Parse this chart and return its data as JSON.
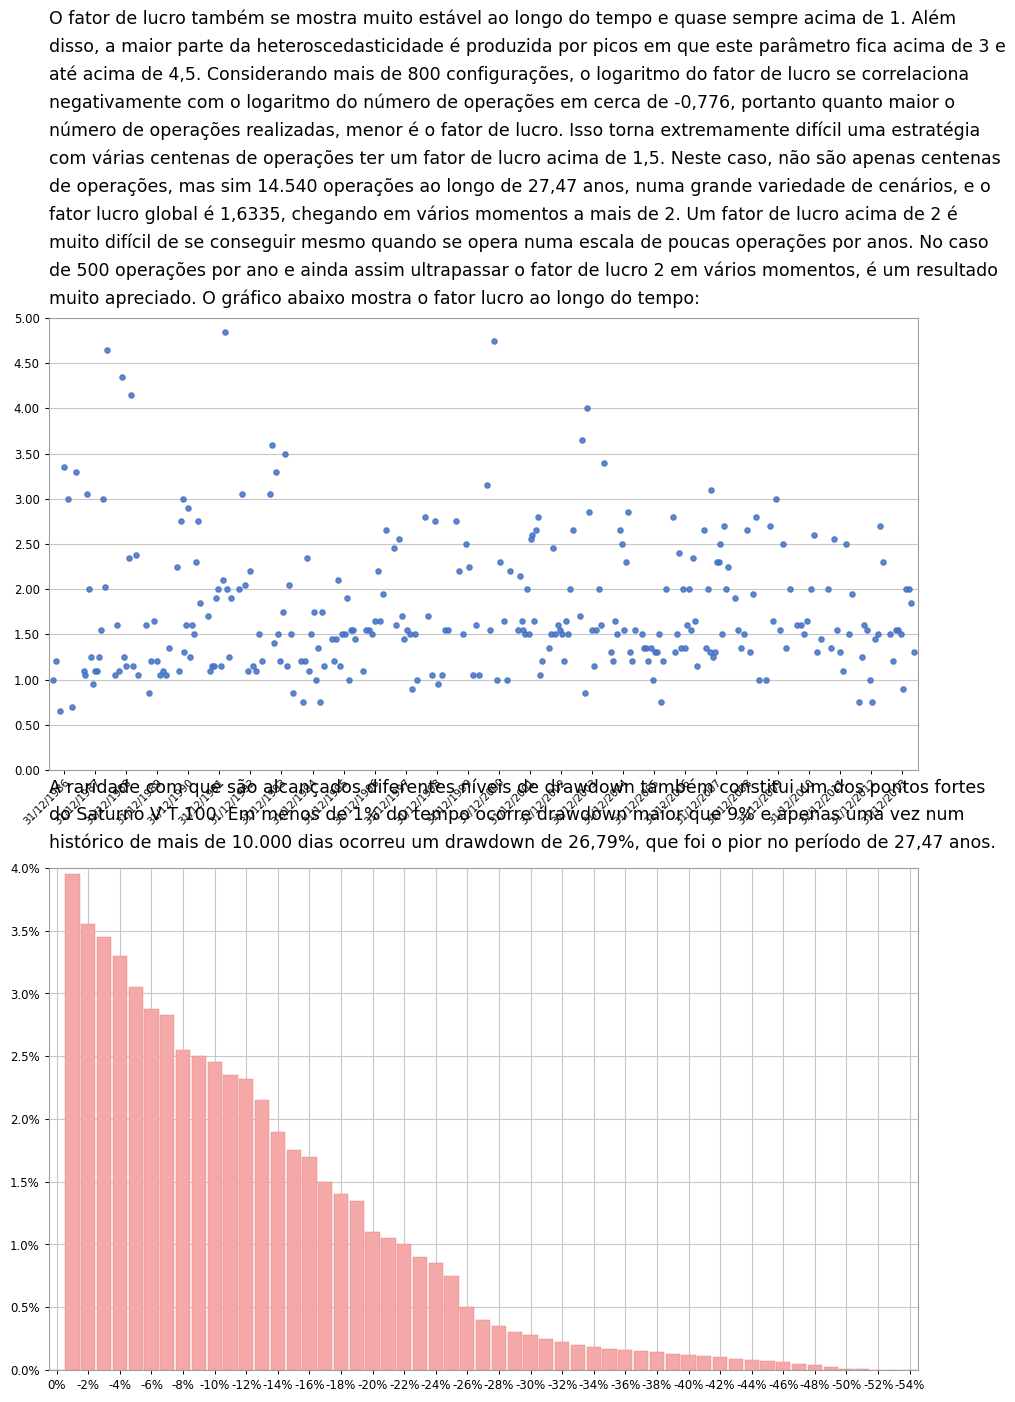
{
  "paragraph_text": "O fator de lucro também se mostra muito estável ao longo do tempo e quase sempre acima de 1. Além\ndisso, a maior parte da heteroscedasticidade é produzida por picos em que este parâmetro fica acima de 3 e\naté acima de 4,5. Considerando mais de 800 configurações, o logaritmo do fator de lucro se correlaciona\nnegativamente com o logaritmo do número de operações em cerca de -0,776, portanto quanto maior o\nnúmero de operações realizadas, menor é o fator de lucro. Isso torna extremamente difícil uma estratégia\ncom várias centenas de operações ter um fator de lucro acima de 1,5. Neste caso, não são apenas centenas\nde operações, mas sim 14.540 operações ao longo de 27,47 anos, numa grande variedade de cenários, e o\nfator lucro global é 1,6335, chegando em vários momentos a mais de 2. Um fator de lucro acima de 2 é\nmuito difícil de se conseguir mesmo quando se opera numa escala de poucas operações por anos. No caso\nde 500 operações por ano e ainda assim ultrapassar o fator de lucro 2 em vários momentos, é um resultado\nmuito apreciado. O gráfico abaixo mostra o fator lucro ao longo do tempo:",
  "paragraph2_text": "A raridade com que são alcançados diferentes níveis de drawdown também constitui um dos pontos fortes\ndo Saturno V T 100. Em menos de 1% do tempo ocorre drawdown maior que 9% e apenas uma vez num\nhistórico de mais de 10.000 dias ocorreu um drawdown de 26,79%, que foi o pior no período de 27,47 anos.",
  "scatter_ylim": [
    0.0,
    5.0
  ],
  "scatter_yticks": [
    0.0,
    0.5,
    1.0,
    1.5,
    2.0,
    2.5,
    3.0,
    3.5,
    4.0,
    4.5,
    5.0
  ],
  "scatter_xlabel_dates": [
    "31/12/1986",
    "31/12/1987",
    "31/12/1988",
    "31/12/1989",
    "31/12/1990",
    "31/12/1991",
    "31/12/1992",
    "31/12/1993",
    "31/12/1994",
    "31/12/1995",
    "31/12/1996",
    "31/12/1997",
    "31/12/1998",
    "31/12/1999",
    "31/12/2000",
    "31/12/2001",
    "31/12/2002",
    "31/12/2003",
    "31/12/2004",
    "31/12/2005",
    "31/12/2006",
    "31/12/2007",
    "31/12/2008",
    "31/12/2009",
    "31/12/2010",
    "31/12/2011",
    "31/12/2012",
    "31/12/2013"
  ],
  "scatter_dot_color": "#4472C4",
  "scatter_bg": "#ffffff",
  "bar_color": "#F4A9A8",
  "bar_bg": "#ffffff",
  "bar_ylim": [
    0.0,
    0.04
  ],
  "bar_yticks": [
    0.0,
    0.005,
    0.01,
    0.015,
    0.02,
    0.025,
    0.03,
    0.035,
    0.04
  ],
  "bar_ytick_labels": [
    "0.0%",
    "0.5%",
    "1.0%",
    "1.5%",
    "2.0%",
    "2.5%",
    "3.0%",
    "3.5%",
    "4.0%"
  ],
  "font_size": 12.5,
  "font_family": "DejaVu Sans",
  "scatter_year_data": {
    "1986": [
      1.0,
      1.2,
      0.7,
      0.65,
      3.0,
      3.35,
      3.3
    ],
    "1987": [
      1.1,
      1.05,
      0.95,
      2.0,
      2.02,
      1.1,
      1.25,
      3.0,
      3.05,
      1.55,
      1.1,
      1.25,
      4.65
    ],
    "1988": [
      1.05,
      1.1,
      1.05,
      1.15,
      2.38,
      2.35,
      1.15,
      4.35,
      4.15,
      1.6,
      1.25
    ],
    "1989": [
      0.85,
      1.05,
      1.1,
      1.2,
      1.35,
      1.6,
      1.65,
      1.2,
      1.05
    ],
    "1990": [
      1.1,
      1.85,
      1.6,
      1.6,
      1.3,
      2.3,
      2.25,
      1.25,
      3.0,
      2.9,
      2.75,
      2.75,
      1.5
    ],
    "1991": [
      1.15,
      1.25,
      2.1,
      1.9,
      2.0,
      2.0,
      1.9,
      1.7,
      1.15,
      1.1,
      1.15,
      4.85
    ],
    "1992": [
      1.2,
      1.5,
      2.0,
      2.05,
      1.15,
      1.1,
      1.1,
      3.05,
      2.2
    ],
    "1993": [
      0.85,
      1.5,
      1.5,
      1.75,
      1.2,
      1.15,
      2.05,
      3.5,
      3.6,
      3.3,
      3.05,
      1.4
    ],
    "1994": [
      1.1,
      1.2,
      1.75,
      1.2,
      1.35,
      1.0,
      1.75,
      1.5,
      2.35,
      1.15,
      0.75,
      0.75
    ],
    "1995": [
      1.0,
      1.45,
      1.5,
      1.55,
      1.5,
      2.1,
      1.45,
      1.55,
      1.9,
      1.45,
      1.2,
      1.15
    ],
    "1996": [
      1.55,
      1.65,
      1.55,
      1.5,
      2.2,
      1.95,
      1.65,
      2.65,
      1.1
    ],
    "1997": [
      1.7,
      1.6,
      1.45,
      1.55,
      1.5,
      1.5,
      1.0,
      0.9,
      2.45,
      2.55
    ],
    "1998": [
      0.95,
      1.55,
      1.05,
      1.05,
      2.75,
      2.8,
      1.7,
      1.55
    ],
    "1999": [
      1.05,
      1.05,
      1.6,
      1.5,
      2.25,
      2.75,
      2.2,
      2.5
    ],
    "2000": [
      1.0,
      1.0,
      1.55,
      1.65,
      2.3,
      2.2,
      3.15,
      4.75
    ],
    "2001": [
      1.05,
      1.65,
      1.2,
      1.55,
      2.0,
      2.15,
      2.55,
      2.8,
      2.6,
      2.65,
      1.5,
      1.65,
      1.5,
      1.55
    ],
    "2002": [
      1.2,
      1.5,
      1.65,
      2.0,
      2.45,
      2.65,
      1.6,
      1.55,
      1.5,
      1.5,
      1.35,
      1.5
    ],
    "2003": [
      1.55,
      1.6,
      1.7,
      2.0,
      2.85,
      3.4,
      3.65,
      4.0,
      1.55,
      0.85,
      1.15
    ],
    "2004": [
      1.2,
      1.65,
      2.3,
      2.65,
      2.85,
      1.55,
      1.3,
      1.2,
      1.55,
      1.3,
      1.5,
      2.5
    ],
    "2005": [
      1.2,
      1.3,
      1.35,
      1.35,
      1.5,
      0.75,
      1.0,
      1.3,
      1.35,
      2.0,
      1.2,
      1.5
    ],
    "2006": [
      1.15,
      1.35,
      1.35,
      1.3,
      1.65,
      2.0,
      2.4,
      2.8,
      2.35,
      2.0,
      1.6,
      1.55,
      1.5
    ],
    "2007": [
      1.3,
      1.25,
      1.3,
      1.5,
      2.25,
      2.3,
      2.0,
      2.5,
      2.3,
      2.7,
      3.1,
      2.65,
      2.0,
      1.35
    ],
    "2008": [
      1.0,
      1.3,
      1.5,
      1.55,
      1.35,
      1.95,
      1.9,
      2.8,
      2.65
    ],
    "2009": [
      1.0,
      1.35,
      1.55,
      1.65,
      2.0,
      2.5,
      2.7,
      3.0
    ],
    "2010": [
      1.3,
      1.45,
      1.6,
      1.65,
      2.0,
      2.6,
      1.6,
      1.5
    ],
    "2011": [
      1.3,
      1.35,
      1.5,
      1.55,
      1.95,
      2.0,
      2.5,
      2.55,
      1.1
    ],
    "2012": [
      0.75,
      0.75,
      1.0,
      1.25,
      1.45,
      1.5,
      2.3,
      2.7,
      1.55,
      1.6
    ],
    "2013": [
      0.9,
      1.2,
      1.3,
      1.5,
      1.5,
      1.85,
      2.0,
      2.0,
      1.55,
      1.55
    ]
  },
  "bar_heights_pct": [
    0.0,
    3.95,
    3.55,
    3.45,
    3.3,
    3.05,
    2.88,
    2.83,
    2.55,
    2.5,
    2.45,
    2.35,
    2.32,
    2.15,
    1.9,
    1.75,
    1.7,
    1.5,
    1.4,
    1.35,
    1.1,
    1.05,
    1.0,
    0.9,
    0.85,
    0.75,
    0.5,
    0.4,
    0.35,
    0.3,
    0.28,
    0.25,
    0.22,
    0.2,
    0.18,
    0.17,
    0.16,
    0.15,
    0.14,
    0.13,
    0.12,
    0.11,
    0.1,
    0.09,
    0.08,
    0.07,
    0.06,
    0.05,
    0.04,
    0.02,
    0.01,
    0.005,
    0.003,
    0.001,
    0.0005
  ]
}
